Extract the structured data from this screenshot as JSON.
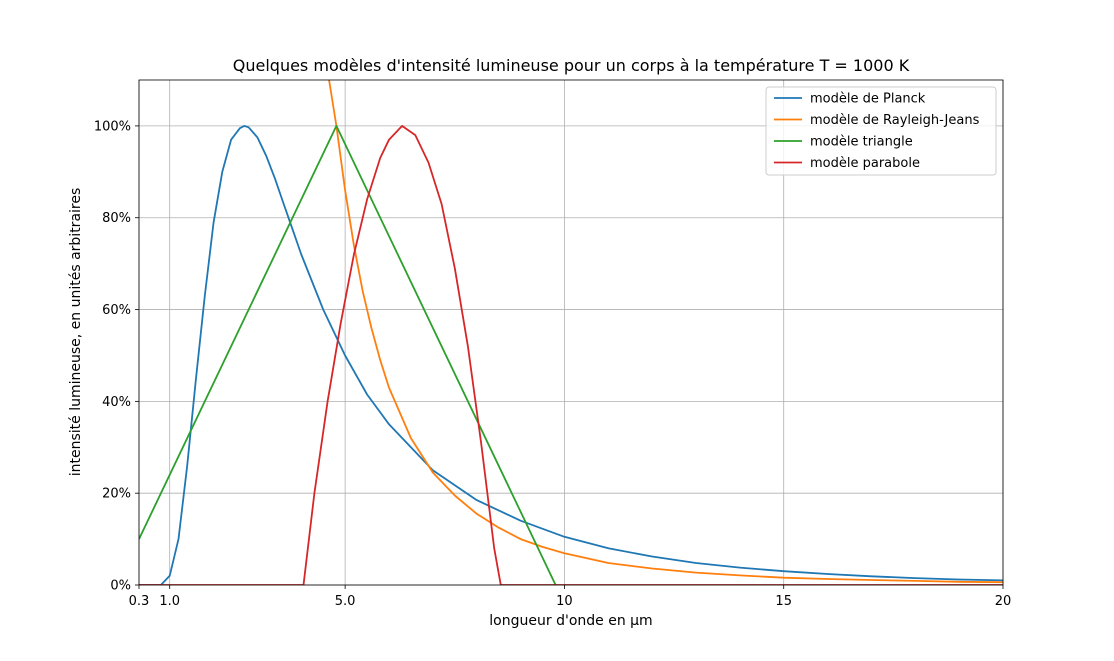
{
  "chart_data": {
    "type": "line",
    "title": "Quelques modèles d'intensité lumineuse pour un corps à la température T = 1000 K",
    "xlabel": "longueur d'onde en µm",
    "ylabel": "intensité lumineuse, en unités arbitraires",
    "xlim": [
      0.3,
      20
    ],
    "ylim": [
      0,
      1.1
    ],
    "xticks": [
      {
        "value": 0.3,
        "label": "0.3"
      },
      {
        "value": 1.0,
        "label": "1.0"
      },
      {
        "value": 5.0,
        "label": "5.0"
      },
      {
        "value": 10,
        "label": "10"
      },
      {
        "value": 15,
        "label": "15"
      },
      {
        "value": 20,
        "label": "20"
      }
    ],
    "yticks": [
      {
        "value": 0,
        "label": "0%"
      },
      {
        "value": 0.2,
        "label": "20%"
      },
      {
        "value": 0.4,
        "label": "40%"
      },
      {
        "value": 0.6,
        "label": "60%"
      },
      {
        "value": 0.8,
        "label": "80%"
      },
      {
        "value": 1.0,
        "label": "100%"
      }
    ],
    "grid": true,
    "legend_position": "top-right",
    "series": [
      {
        "name": "modèle de Planck",
        "color": "#1f77b4",
        "x": [
          0.3,
          0.6,
          0.8,
          1.0,
          1.2,
          1.4,
          1.6,
          1.8,
          2.0,
          2.2,
          2.4,
          2.6,
          2.7,
          2.8,
          3.0,
          3.2,
          3.4,
          3.6,
          3.8,
          4.0,
          4.5,
          5.0,
          5.5,
          6.0,
          7.0,
          8.0,
          9.0,
          10.0,
          11.0,
          12.0,
          13.0,
          14.0,
          15.0,
          16.0,
          17.0,
          18.0,
          19.0,
          20.0
        ],
        "y": [
          0.0,
          0.0,
          0.0,
          0.02,
          0.1,
          0.26,
          0.45,
          0.63,
          0.79,
          0.9,
          0.97,
          0.995,
          1.0,
          0.997,
          0.975,
          0.935,
          0.885,
          0.83,
          0.775,
          0.72,
          0.6,
          0.5,
          0.415,
          0.35,
          0.25,
          0.185,
          0.14,
          0.105,
          0.08,
          0.062,
          0.048,
          0.038,
          0.03,
          0.024,
          0.019,
          0.015,
          0.012,
          0.01
        ]
      },
      {
        "name": "modèle de Rayleigh-Jeans",
        "color": "#ff7f0e",
        "x": [
          4.6,
          4.8,
          5.0,
          5.2,
          5.4,
          5.6,
          5.8,
          6.0,
          6.5,
          7.0,
          7.5,
          8.0,
          8.5,
          9.0,
          9.5,
          10.0,
          11.0,
          12.0,
          13.0,
          14.0,
          15.0,
          16.0,
          17.0,
          18.0,
          19.0,
          20.0
        ],
        "y": [
          1.12,
          1.0,
          0.86,
          0.74,
          0.64,
          0.56,
          0.49,
          0.43,
          0.32,
          0.245,
          0.195,
          0.155,
          0.125,
          0.1,
          0.083,
          0.069,
          0.048,
          0.036,
          0.027,
          0.021,
          0.016,
          0.013,
          0.011,
          0.009,
          0.007,
          0.006
        ]
      },
      {
        "name": "modèle triangle",
        "color": "#2ca02c",
        "x": [
          0.3,
          4.8,
          9.8
        ],
        "y": [
          0.1,
          1.0,
          0.0
        ]
      },
      {
        "name": "modèle parabole",
        "color": "#d62728",
        "x": [
          0.3,
          4.05,
          4.3,
          4.6,
          4.9,
          5.2,
          5.5,
          5.8,
          6.0,
          6.3,
          6.6,
          6.9,
          7.2,
          7.5,
          7.8,
          8.1,
          8.4,
          8.55,
          10.0,
          15.0,
          20.0
        ],
        "y": [
          0.0,
          0.0,
          0.2,
          0.4,
          0.57,
          0.72,
          0.84,
          0.93,
          0.97,
          1.0,
          0.98,
          0.92,
          0.83,
          0.69,
          0.52,
          0.31,
          0.08,
          0.0,
          0.0,
          0.0,
          0.0
        ]
      }
    ]
  }
}
